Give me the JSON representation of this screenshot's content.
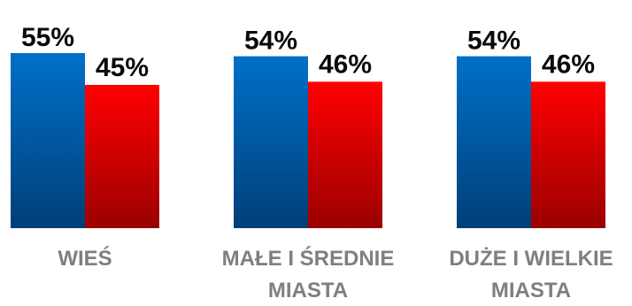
{
  "chart_data": {
    "type": "bar",
    "categories": [
      [
        "WIEŚ"
      ],
      [
        "MAŁE I ŚREDNIE",
        "MIASTA"
      ],
      [
        "DUŻE I WIELKIE",
        "MIASTA"
      ]
    ],
    "series": [
      {
        "values": [
          55,
          54,
          54
        ],
        "labels": [
          "55%",
          "54%",
          "54%"
        ],
        "color_top": "#0070C8",
        "color_bottom": "#003F78"
      },
      {
        "values": [
          45,
          46,
          46
        ],
        "labels": [
          "45%",
          "46%",
          "46%"
        ],
        "color_top": "#FF0000",
        "color_bottom": "#9A0000"
      }
    ],
    "ylim": [
      0,
      100
    ],
    "grid": false,
    "legend": "none"
  }
}
